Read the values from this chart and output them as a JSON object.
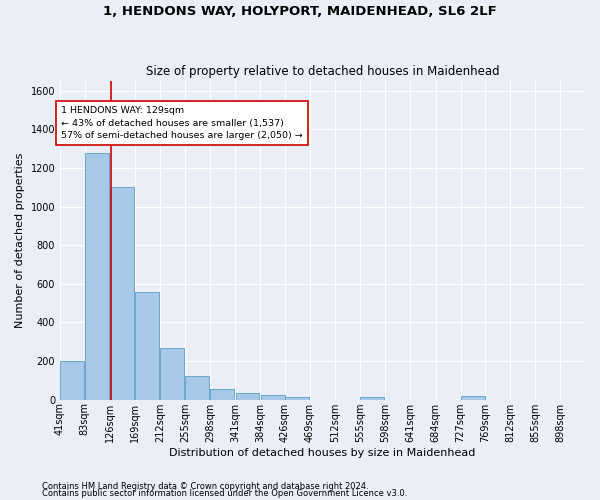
{
  "title": "1, HENDONS WAY, HOLYPORT, MAIDENHEAD, SL6 2LF",
  "subtitle": "Size of property relative to detached houses in Maidenhead",
  "xlabel": "Distribution of detached houses by size in Maidenhead",
  "ylabel": "Number of detached properties",
  "footnote1": "Contains HM Land Registry data © Crown copyright and database right 2024.",
  "footnote2": "Contains public sector information licensed under the Open Government Licence v3.0.",
  "bins": [
    41,
    83,
    126,
    169,
    212,
    255,
    298,
    341,
    384,
    426,
    469,
    512,
    555,
    598,
    641,
    684,
    727,
    769,
    812,
    855,
    898
  ],
  "bin_labels": [
    "41sqm",
    "83sqm",
    "126sqm",
    "169sqm",
    "212sqm",
    "255sqm",
    "298sqm",
    "341sqm",
    "384sqm",
    "426sqm",
    "469sqm",
    "512sqm",
    "555sqm",
    "598sqm",
    "641sqm",
    "684sqm",
    "727sqm",
    "769sqm",
    "812sqm",
    "855sqm",
    "898sqm"
  ],
  "values": [
    200,
    1275,
    1100,
    555,
    270,
    120,
    55,
    35,
    25,
    15,
    0,
    0,
    15,
    0,
    0,
    0,
    20,
    0,
    0,
    0,
    0
  ],
  "bar_color": "#a8c8e8",
  "bar_edge_color": "#5a9ec9",
  "vline_x": 129,
  "vline_color": "#cc0000",
  "annotation_text": "1 HENDONS WAY: 129sqm\n← 43% of detached houses are smaller (1,537)\n57% of semi-detached houses are larger (2,050) →",
  "annotation_box_color": "#ffffff",
  "annotation_box_edge": "#cc0000",
  "ylim": [
    0,
    1650
  ],
  "yticks": [
    0,
    200,
    400,
    600,
    800,
    1000,
    1200,
    1400,
    1600
  ],
  "background_color": "#eaeff7",
  "grid_color": "#ffffff",
  "title_fontsize": 9.5,
  "subtitle_fontsize": 8.5,
  "axis_label_fontsize": 8,
  "tick_fontsize": 7,
  "footnote_fontsize": 6
}
